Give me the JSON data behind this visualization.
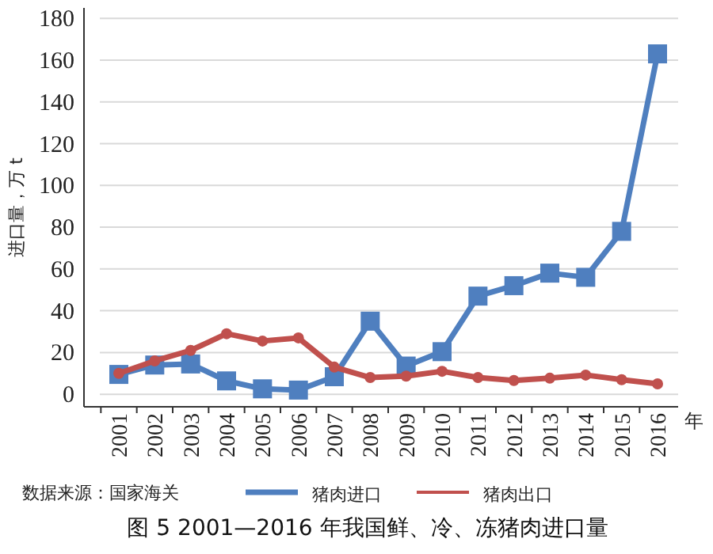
{
  "chart_data": {
    "type": "line",
    "title": "图 5  2001—2016 年我国鲜、冷、冻猪肉进口量",
    "ylabel": "进口量，万 t",
    "xlabel": "年",
    "annotations": [
      "数据来源：国家海关"
    ],
    "categories": [
      "2001",
      "2002",
      "2003",
      "2004",
      "2005",
      "2006",
      "2007",
      "2008",
      "2009",
      "2010",
      "2011",
      "2012",
      "2013",
      "2014",
      "2015",
      "2016"
    ],
    "series": [
      {
        "name": "猪肉进口",
        "color": "#4f7fbf",
        "marker": "square",
        "values": [
          9.5,
          14,
          14.5,
          6.4,
          2.6,
          2,
          8.4,
          35,
          13.5,
          20.4,
          47,
          52,
          58,
          56,
          78,
          163
        ]
      },
      {
        "name": "猪肉出口",
        "color": "#c0504d",
        "marker": "circle",
        "values": [
          10,
          16,
          21,
          29,
          25.5,
          27,
          13,
          8,
          8.7,
          11,
          8,
          6.6,
          7.7,
          9.2,
          7,
          5
        ]
      }
    ],
    "ylim": [
      -6,
      185
    ],
    "yticks": [
      0,
      20,
      40,
      60,
      80,
      100,
      120,
      140,
      160,
      180
    ],
    "grid": "y",
    "legend": "bottom"
  }
}
